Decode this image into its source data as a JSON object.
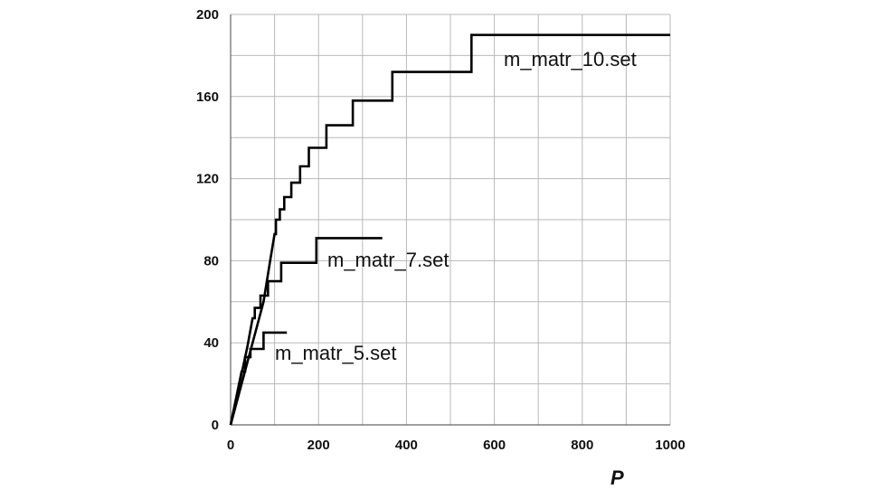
{
  "chart_data": {
    "type": "line",
    "title": "",
    "xlabel": "P",
    "ylabel": "",
    "xlim": [
      0,
      1000
    ],
    "ylim": [
      0,
      200
    ],
    "x_ticks": [
      0,
      200,
      400,
      600,
      800,
      1000
    ],
    "y_ticks": [
      0,
      40,
      80,
      120,
      160,
      200
    ],
    "x_gridlines": [
      0,
      100,
      200,
      300,
      400,
      500,
      600,
      700,
      800,
      900,
      1000
    ],
    "y_gridlines": [
      0,
      20,
      40,
      60,
      80,
      100,
      120,
      140,
      160,
      180,
      200
    ],
    "grid": true,
    "step": true,
    "series": [
      {
        "name": "m_matr_10.set",
        "points": [
          [
            0,
            0
          ],
          [
            50,
            40
          ],
          [
            75,
            60
          ],
          [
            90,
            80
          ],
          [
            100,
            93
          ],
          [
            103,
            93
          ],
          [
            103,
            100
          ],
          [
            112,
            100
          ],
          [
            112,
            105
          ],
          [
            122,
            105
          ],
          [
            122,
            111
          ],
          [
            138,
            111
          ],
          [
            138,
            118
          ],
          [
            158,
            118
          ],
          [
            158,
            126
          ],
          [
            178,
            126
          ],
          [
            178,
            135
          ],
          [
            218,
            135
          ],
          [
            218,
            146
          ],
          [
            278,
            146
          ],
          [
            278,
            158
          ],
          [
            368,
            158
          ],
          [
            368,
            172
          ],
          [
            548,
            172
          ],
          [
            548,
            190
          ],
          [
            1000,
            190
          ]
        ]
      },
      {
        "name": "m_matr_7.set",
        "points": [
          [
            0,
            0
          ],
          [
            38,
            38
          ],
          [
            50,
            52
          ],
          [
            55,
            52
          ],
          [
            55,
            57
          ],
          [
            68,
            57
          ],
          [
            68,
            63
          ],
          [
            85,
            63
          ],
          [
            85,
            70
          ],
          [
            115,
            70
          ],
          [
            115,
            79
          ],
          [
            195,
            79
          ],
          [
            195,
            91
          ],
          [
            345,
            91
          ]
        ]
      },
      {
        "name": "m_matr_5.set",
        "points": [
          [
            0,
            0
          ],
          [
            25,
            26
          ],
          [
            33,
            26
          ],
          [
            33,
            33
          ],
          [
            45,
            33
          ],
          [
            45,
            37
          ],
          [
            75,
            37
          ],
          [
            75,
            45
          ],
          [
            128,
            45
          ]
        ]
      }
    ]
  },
  "labels": {
    "series_10": "m_matr_10.set",
    "series_7": "m_matr_7.set",
    "series_5": "m_matr_5.set",
    "x_axis": "P"
  }
}
